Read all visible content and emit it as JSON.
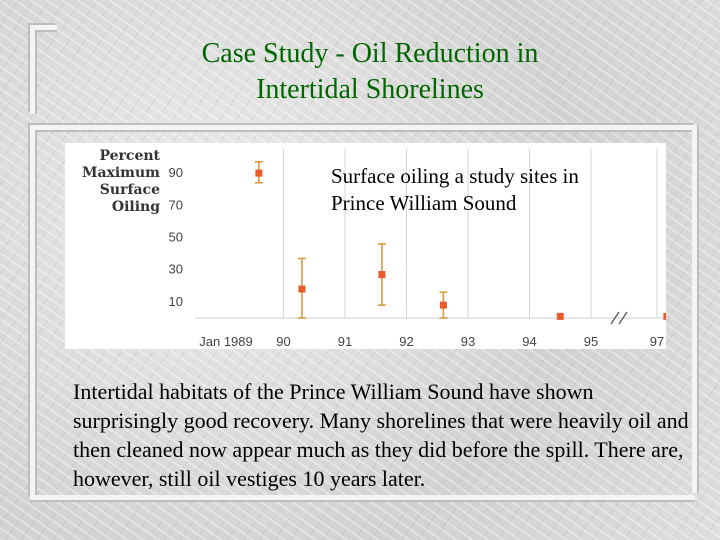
{
  "slide": {
    "title_lines": [
      "Case Study - Oil Reduction in",
      "Intertidal Shorelines"
    ],
    "body_text": "Intertidal habitats of the Prince William Sound have shown surprisingly good recovery.  Many shorelines that were heavily oil and then cleaned now appear much as they did before the spill.  There are, however, still oil vestiges 10 years later."
  },
  "colors": {
    "title": "#006600",
    "marker": "#e85a2a",
    "error_bar": "#d99a40"
  },
  "chart_data": {
    "type": "scatter",
    "ylabel_lines": [
      "Percent",
      "Maximum",
      "Surface",
      "Oiling"
    ],
    "annotation_lines": [
      "Surface oiling a study sites in",
      "Prince William Sound"
    ],
    "x_ticks": [
      {
        "value": 1989,
        "label": "Jan 1989"
      },
      {
        "value": 1990,
        "label": "90"
      },
      {
        "value": 1991,
        "label": "91"
      },
      {
        "value": 1992,
        "label": "92"
      },
      {
        "value": 1993,
        "label": "93"
      },
      {
        "value": 1994,
        "label": "94"
      },
      {
        "value": 1995,
        "label": "95"
      },
      {
        "value": 1997,
        "label": "97"
      }
    ],
    "y_ticks": [
      10,
      30,
      50,
      70,
      90
    ],
    "axis_break_between": [
      1995,
      1997
    ],
    "ylim": [
      0,
      100
    ],
    "grid": "vertical",
    "points": [
      {
        "x": 1989.6,
        "y": 90,
        "err_low": 84,
        "err_high": 97
      },
      {
        "x": 1990.3,
        "y": 18,
        "err_low": 0,
        "err_high": 37
      },
      {
        "x": 1991.6,
        "y": 27,
        "err_low": 8,
        "err_high": 46
      },
      {
        "x": 1992.6,
        "y": 8,
        "err_low": 0,
        "err_high": 16
      },
      {
        "x": 1994.5,
        "y": 1
      },
      {
        "x": 1997.3,
        "y": 1
      }
    ]
  }
}
